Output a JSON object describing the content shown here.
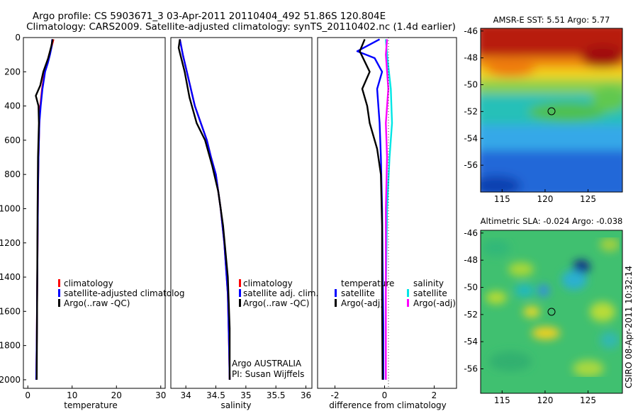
{
  "title_line1": "Argo profile: CS 5903671_3 03-Apr-2011 20110404_492 51.86S 120.804E",
  "title_line2": "Climatology: CARS2009. Satellite-adjusted climatology: synTS_20110402.nc (1.4d earlier)",
  "side_stamp": "CSIRO 08-Apr-2011 10:32:14",
  "chart_data": [
    {
      "id": "temperature",
      "type": "line",
      "xlabel": "temperature",
      "ylabel": "",
      "xlim": [
        -1,
        31
      ],
      "ylim": [
        2050,
        0
      ],
      "xticks": [
        0,
        10,
        20,
        30
      ],
      "yticks": [
        0,
        200,
        400,
        600,
        800,
        1000,
        1200,
        1400,
        1600,
        1800,
        2000
      ],
      "legend": [
        "climatology",
        "satellite-adjusted climatolog",
        "Argo(..raw -QC)"
      ],
      "legend_position": "center-right",
      "series": [
        {
          "name": "climatology",
          "color": "#ff0000",
          "x": [
            5.8,
            5.4,
            4.8,
            4.3,
            3.8,
            3.2,
            2.8,
            2.6,
            2.4,
            2.3,
            2.2,
            2.1,
            2.0,
            1.9
          ],
          "y": [
            10,
            50,
            100,
            150,
            200,
            300,
            400,
            500,
            700,
            900,
            1200,
            1500,
            1800,
            2000
          ]
        },
        {
          "name": "satellite-adjusted climatolog",
          "color": "#0000ff",
          "x": [
            5.5,
            5.4,
            5.0,
            4.5,
            3.9,
            3.3,
            2.9,
            2.6,
            2.4,
            2.3,
            2.2,
            2.1,
            2.0,
            1.9
          ],
          "y": [
            10,
            50,
            100,
            150,
            200,
            300,
            400,
            500,
            700,
            900,
            1200,
            1500,
            1800,
            2000
          ]
        },
        {
          "name": "Argo(..raw -QC)",
          "color": "#000000",
          "x": [
            5.6,
            5.3,
            5.0,
            4.6,
            3.5,
            2.8,
            1.8,
            2.4,
            2.5,
            2.3,
            2.2,
            2.1,
            2.0
          ],
          "y": [
            10,
            50,
            80,
            120,
            200,
            280,
            340,
            400,
            500,
            700,
            1000,
            1500,
            2000
          ]
        }
      ]
    },
    {
      "id": "salinity",
      "type": "line",
      "xlabel": "salinity",
      "ylabel": "",
      "xlim": [
        33.75,
        36.1
      ],
      "ylim": [
        2050,
        0
      ],
      "xticks": [
        34,
        34.5,
        35,
        35.5,
        36
      ],
      "yticks": [],
      "legend": [
        "climatology",
        "satellite adj. clim.",
        "Argo(..raw -QC)"
      ],
      "legend_position": "center-right",
      "annotations": [
        "Argo AUSTRALIA",
        "PI: Susan Wijffels"
      ],
      "series": [
        {
          "name": "climatology",
          "color": "#ff0000",
          "x": [
            33.9,
            33.95,
            34.05,
            34.15,
            34.25,
            34.35,
            34.42,
            34.5,
            34.58,
            34.64,
            34.7,
            34.72,
            34.73
          ],
          "y": [
            10,
            100,
            250,
            400,
            500,
            600,
            700,
            800,
            1000,
            1200,
            1500,
            1800,
            2000
          ]
        },
        {
          "name": "satellite adj. clim.",
          "color": "#0000ff",
          "x": [
            33.9,
            33.95,
            34.05,
            34.15,
            34.25,
            34.35,
            34.42,
            34.5,
            34.58,
            34.64,
            34.7,
            34.72,
            34.73
          ],
          "y": [
            10,
            100,
            250,
            400,
            500,
            600,
            700,
            800,
            1000,
            1200,
            1500,
            1800,
            2000
          ]
        },
        {
          "name": "Argo(..raw -QC)",
          "color": "#000000",
          "x": [
            33.9,
            33.88,
            33.98,
            34.06,
            34.18,
            34.32,
            34.44,
            34.54,
            34.62,
            34.7,
            34.73,
            34.73
          ],
          "y": [
            10,
            60,
            200,
            350,
            500,
            600,
            750,
            900,
            1100,
            1400,
            1700,
            2000
          ]
        }
      ]
    },
    {
      "id": "difference",
      "type": "line",
      "xlabel": "difference from climatology",
      "ylabel": "",
      "xlim": [
        -2.7,
        2.9
      ],
      "ylim": [
        2050,
        0
      ],
      "xticks": [
        -2,
        0,
        2
      ],
      "yticks": [],
      "legend_groups": [
        {
          "title": "temperature",
          "items": [
            "satellite",
            "Argo(-adj)"
          ]
        },
        {
          "title": "salinity",
          "items": [
            "satellite",
            "Argo(-adj)"
          ]
        }
      ],
      "legend_position": "center",
      "series": [
        {
          "name": "temperature satellite",
          "color": "#0000ff",
          "x": [
            -0.2,
            -1.1,
            -0.4,
            -0.1,
            -0.3,
            -0.2,
            -0.15,
            -0.1,
            -0.08,
            -0.05,
            -0.05
          ],
          "y": [
            10,
            80,
            120,
            200,
            300,
            500,
            700,
            1000,
            1300,
            1700,
            2000
          ]
        },
        {
          "name": "temperature Argo(-adj)",
          "color": "#000000",
          "x": [
            -0.8,
            -1.0,
            -0.6,
            -0.9,
            -0.7,
            -0.6,
            -0.3,
            -0.15,
            -0.1,
            -0.1,
            -0.08
          ],
          "y": [
            10,
            80,
            200,
            300,
            400,
            500,
            650,
            800,
            1100,
            1500,
            2000
          ]
        },
        {
          "name": "salinity satellite",
          "color": "#00e5e5",
          "x": [
            0.05,
            0.1,
            0.25,
            0.3,
            0.2,
            0.1,
            0.05,
            0.05
          ],
          "y": [
            10,
            100,
            300,
            500,
            700,
            1000,
            1500,
            2000
          ]
        },
        {
          "name": "salinity Argo(-adj)",
          "color": "#ff00ff",
          "x": [
            0.1,
            0.05,
            0.15,
            0.05,
            0.1,
            0.05,
            0.05,
            0.05
          ],
          "y": [
            10,
            100,
            300,
            500,
            700,
            1000,
            1500,
            2000
          ]
        }
      ]
    },
    {
      "id": "sst_map",
      "type": "heatmap",
      "title": "AMSR-E SST: 5.51 Argo: 5.77",
      "xlim": [
        112.5,
        129
      ],
      "ylim": [
        -58,
        -45.8
      ],
      "xticks": [
        115,
        120,
        125
      ],
      "yticks": [
        -46,
        -48,
        -50,
        -52,
        -54,
        -56
      ],
      "marker": {
        "lon": 120.8,
        "lat": -51.86
      }
    },
    {
      "id": "sla_map",
      "type": "heatmap",
      "title": "Altimetric SLA: -0.024 Argo: -0.038",
      "xlim": [
        112.5,
        129
      ],
      "ylim": [
        -57.8,
        -45.8
      ],
      "xticks": [
        115,
        120,
        125
      ],
      "yticks": [
        -46,
        -48,
        -50,
        -52,
        -54,
        -56
      ],
      "marker": {
        "lon": 120.8,
        "lat": -51.86
      }
    }
  ]
}
